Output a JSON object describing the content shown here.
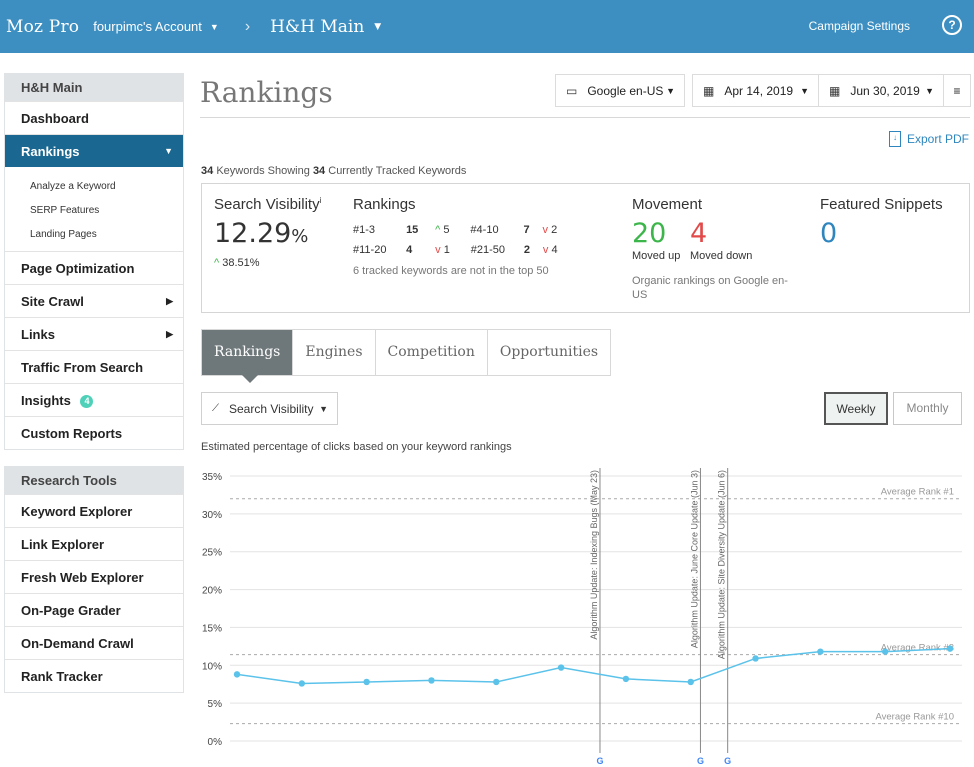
{
  "topbar": {
    "brand": "Moz Pro",
    "account": "fourpimc's Account",
    "campaign": "H&H Main",
    "campaign_settings": "Campaign Settings",
    "help": "?"
  },
  "sidebar": {
    "group_title": "H&H Main",
    "items": [
      {
        "label": "Dashboard"
      },
      {
        "label": "Rankings"
      },
      {
        "label": "Page Optimization"
      },
      {
        "label": "Site Crawl"
      },
      {
        "label": "Links"
      },
      {
        "label": "Traffic From Search"
      },
      {
        "label": "Insights",
        "badge": "4"
      },
      {
        "label": "Custom Reports"
      }
    ],
    "subitems": [
      "Analyze a Keyword",
      "SERP Features",
      "Landing Pages"
    ],
    "research_title": "Research Tools",
    "research_items": [
      "Keyword Explorer",
      "Link Explorer",
      "Fresh Web Explorer",
      "On-Page Grader",
      "On-Demand Crawl",
      "Rank Tracker"
    ]
  },
  "header": {
    "title": "Rankings",
    "engine": "Google en-US",
    "date_start": "Apr 14, 2019",
    "date_end": "Jun 30, 2019",
    "export": "Export PDF"
  },
  "keywords": {
    "showing": "34",
    "showing_text": "Keywords Showing",
    "tracked": "34",
    "tracked_text": "Currently Tracked Keywords"
  },
  "summary": {
    "visibility_title": "Search Visibility",
    "visibility_info": "i",
    "visibility_value": "12.29",
    "visibility_unit": "%",
    "visibility_change": "38.51%",
    "rankings_title": "Rankings",
    "rank_rows": [
      [
        {
          "range": "#1-3",
          "count": "15",
          "dir": "up",
          "change": "5"
        },
        {
          "range": "#4-10",
          "count": "7",
          "dir": "down",
          "change": "2"
        }
      ],
      [
        {
          "range": "#11-20",
          "count": "4",
          "dir": "down",
          "change": "1"
        },
        {
          "range": "#21-50",
          "count": "2",
          "dir": "down",
          "change": "4"
        }
      ]
    ],
    "rank_note": "6 tracked keywords are not in the top 50",
    "movement_title": "Movement",
    "moved_up": "20",
    "moved_up_label": "Moved up",
    "moved_down": "4",
    "moved_down_label": "Moved down",
    "movement_note": "Organic rankings on Google en-US",
    "snippets_title": "Featured Snippets",
    "snippets_value": "0"
  },
  "tabs": [
    "Rankings",
    "Engines",
    "Competition",
    "Opportunities"
  ],
  "controls": {
    "metric": "Search Visibility",
    "weekly": "Weekly",
    "monthly": "Monthly"
  },
  "chart_caption": "Estimated percentage of clicks based on your keyword rankings",
  "colors": {
    "topbar": "#3d8fc1",
    "sidebar_active": "#1a6891",
    "line": "#5bc2ea",
    "moved_up": "#3cb54a",
    "moved_down": "#e24a4a",
    "snippets": "#2f86be"
  },
  "chart_data": {
    "type": "line",
    "ylim": [
      0,
      35
    ],
    "y_ticks": [
      "0%",
      "5%",
      "10%",
      "15%",
      "20%",
      "25%",
      "30%",
      "35%"
    ],
    "y_tick_values": [
      0,
      5,
      10,
      15,
      20,
      25,
      30,
      35
    ],
    "grid": true,
    "series": [
      {
        "values": [
          8.8,
          7.6,
          7.8,
          8.0,
          7.8,
          9.7,
          8.2,
          7.8,
          10.9,
          11.8,
          11.8,
          12.2
        ]
      }
    ],
    "reference_lines": [
      {
        "label": "Average Rank #1",
        "value": 32.0
      },
      {
        "label": "Average Rank #3",
        "value": 11.4
      },
      {
        "label": "Average Rank #10",
        "value": 2.3
      }
    ],
    "annotations": [
      {
        "label": "Algorithm Update: Indexing Bugs (May 23)",
        "x": 5.6
      },
      {
        "label": "Algorithm Update: June Core Update (Jun 3)",
        "x": 7.15
      },
      {
        "label": "Algorithm Update: Site Diversity Update (Jun 6)",
        "x": 7.57
      }
    ],
    "annotation_marker": "G"
  }
}
